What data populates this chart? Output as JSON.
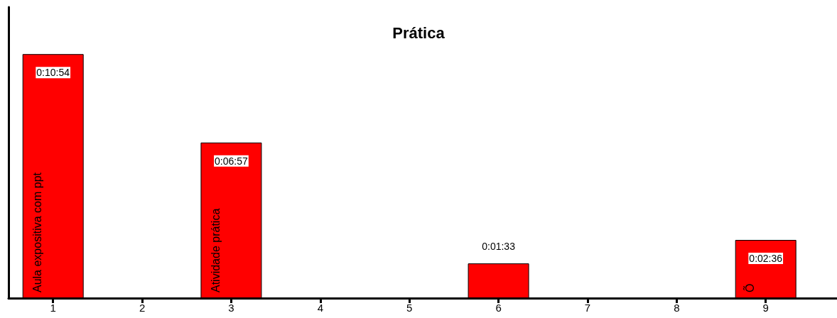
{
  "chart_data": {
    "type": "bar",
    "title": "Prática",
    "x": [
      1,
      3,
      6,
      9
    ],
    "values": [
      654,
      417,
      93,
      156
    ],
    "value_labels": [
      "0:10:54",
      "0:06:57",
      "0:01:33",
      "0:02:36"
    ],
    "color": "#ff0000",
    "xlim": [
      0.5,
      9.8
    ],
    "xticks": [
      1,
      2,
      3,
      4,
      5,
      6,
      7,
      8,
      9
    ],
    "ylim": [
      0,
      780
    ],
    "tick_labels": "x",
    "grid": false,
    "annotations": [
      {
        "text": "Aula expositiva com ppt",
        "x": 1,
        "y": 0
      },
      {
        "text": "Atividade prática",
        "x": 3,
        "y": 0
      },
      {
        "text": "Õ",
        "x": 9,
        "y": 0
      }
    ]
  }
}
